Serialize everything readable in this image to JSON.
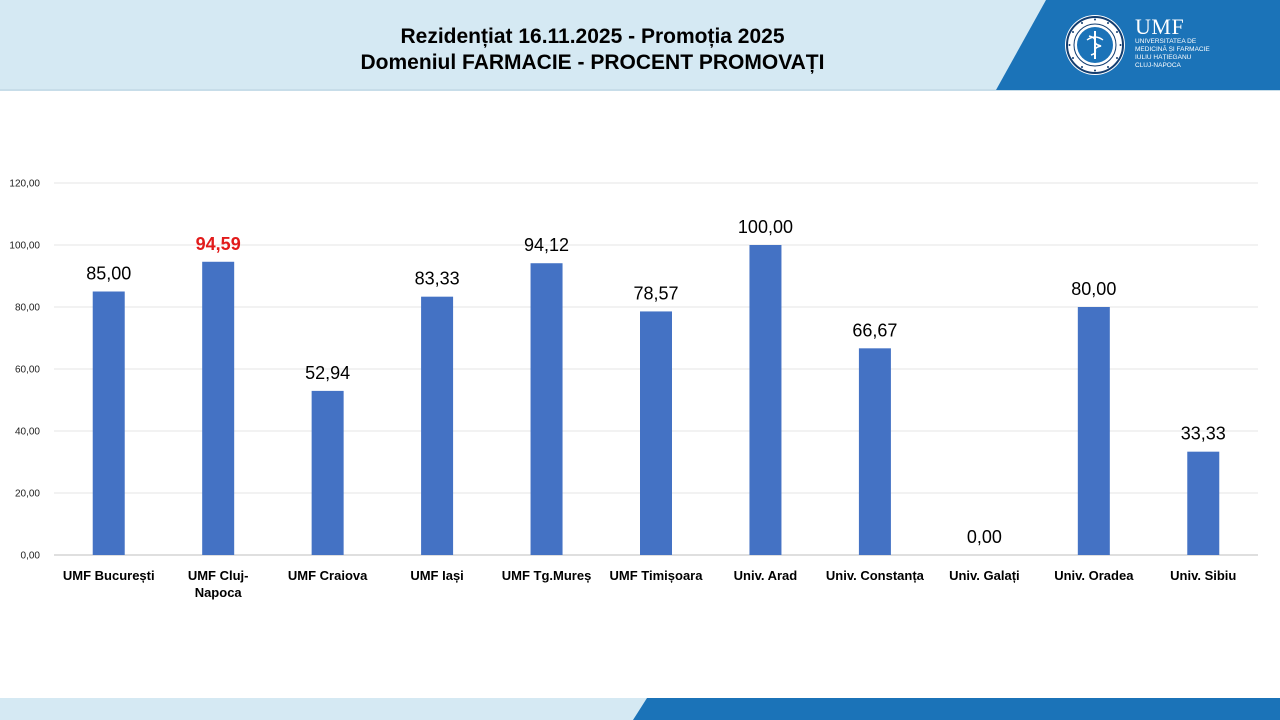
{
  "header": {
    "title_line1": "Rezidențiat 16.11.2025 - Promoția 2025",
    "title_line2": "Domeniul FARMACIE  -  PROCENT PROMOVAȚI"
  },
  "logo": {
    "name": "UMF",
    "line1": "UNIVERSITATEA DE",
    "line2": "MEDICINĂ ȘI FARMACIE",
    "line3": "IULIU HAȚIEGANU",
    "line4": "CLUJ-NAPOCA",
    "seal_icon": "university-seal-icon"
  },
  "chart_data": {
    "type": "bar",
    "categories": [
      [
        "UMF București"
      ],
      [
        "UMF Cluj-",
        "Napoca"
      ],
      [
        "UMF Craiova"
      ],
      [
        "UMF Iași"
      ],
      [
        "UMF Tg.Mureș"
      ],
      [
        "UMF Timișoara"
      ],
      [
        "Univ. Arad"
      ],
      [
        "Univ. Constanța"
      ],
      [
        "Univ. Galați"
      ],
      [
        "Univ. Oradea"
      ],
      [
        "Univ. Sibiu"
      ]
    ],
    "values": [
      85.0,
      94.59,
      52.94,
      83.33,
      94.12,
      78.57,
      100.0,
      66.67,
      0.0,
      80.0,
      33.33
    ],
    "value_labels": [
      "85,00",
      "94,59",
      "52,94",
      "83,33",
      "94,12",
      "78,57",
      "100,00",
      "66,67",
      "0,00",
      "80,00",
      "33,33"
    ],
    "highlight_index": 1,
    "ylim": [
      0,
      120
    ],
    "yticks": [
      "0,00",
      "20,00",
      "40,00",
      "60,00",
      "80,00",
      "100,00",
      "120,00"
    ],
    "grid": true,
    "title": "",
    "xlabel": "",
    "ylabel": "",
    "bar_color": "#4472c4",
    "highlight_color": "#e21b1b"
  }
}
